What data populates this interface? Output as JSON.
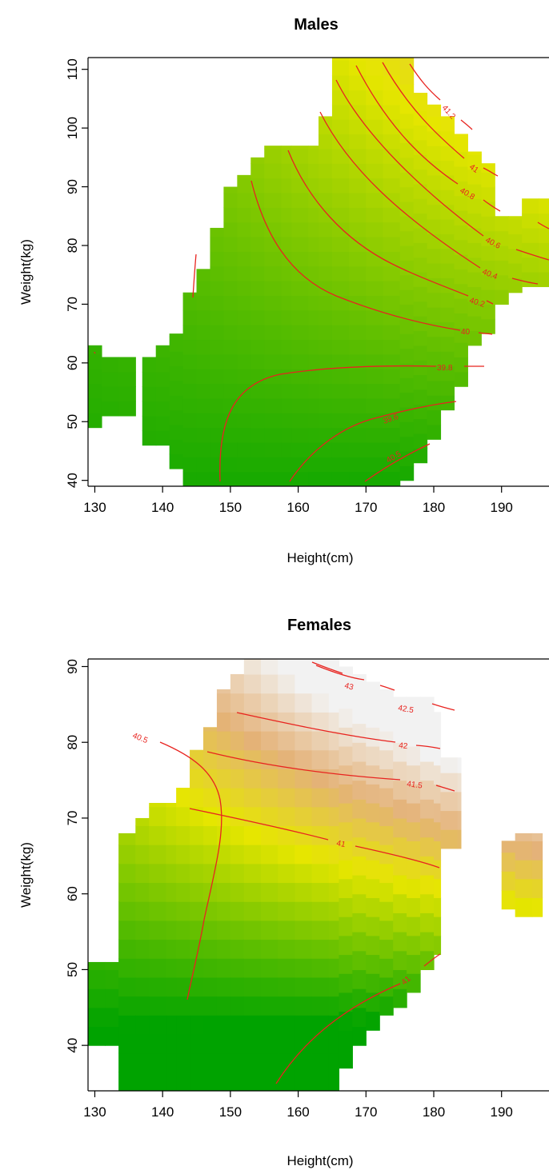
{
  "chart_data": [
    {
      "type": "heatmap",
      "title": "Males",
      "xlabel": "Height(cm)",
      "ylabel": "Weight(kg)",
      "xlim": [
        129,
        197
      ],
      "ylim": [
        39,
        112
      ],
      "x_ticks": [
        "130",
        "140",
        "150",
        "160",
        "170",
        "180",
        "190"
      ],
      "y_ticks": [
        "40",
        "50",
        "60",
        "70",
        "80",
        "90",
        "100",
        "110"
      ],
      "color_scale": {
        "low": "#00a300",
        "mid": "#e6e600",
        "high": "#f2f2f2",
        "vmin": 39.2,
        "vmax": 41.4
      },
      "cell_size": [
        2.5,
        2.5
      ],
      "coverage": [
        {
          "x": [
            129,
            131
          ],
          "y": [
            49,
            63
          ]
        },
        {
          "x": [
            131,
            136
          ],
          "y": [
            51,
            61
          ]
        },
        {
          "x": [
            137,
            139
          ],
          "y": [
            46,
            61
          ]
        },
        {
          "x": [
            139,
            141
          ],
          "y": [
            46,
            63
          ]
        },
        {
          "x": [
            141,
            143
          ],
          "y": [
            42,
            65
          ]
        },
        {
          "x": [
            143,
            145
          ],
          "y": [
            39,
            72
          ]
        },
        {
          "x": [
            145,
            147
          ],
          "y": [
            39,
            76
          ]
        },
        {
          "x": [
            147,
            149
          ],
          "y": [
            39,
            83
          ]
        },
        {
          "x": [
            149,
            151
          ],
          "y": [
            39,
            90
          ]
        },
        {
          "x": [
            151,
            153
          ],
          "y": [
            39,
            92
          ]
        },
        {
          "x": [
            153,
            155
          ],
          "y": [
            39,
            95
          ]
        },
        {
          "x": [
            155,
            159
          ],
          "y": [
            39,
            97
          ]
        },
        {
          "x": [
            159,
            163
          ],
          "y": [
            39,
            97
          ]
        },
        {
          "x": [
            163,
            165
          ],
          "y": [
            39,
            102
          ]
        },
        {
          "x": [
            165,
            175
          ],
          "y": [
            39,
            112
          ]
        },
        {
          "x": [
            175,
            177
          ],
          "y": [
            40,
            112
          ]
        },
        {
          "x": [
            177,
            179
          ],
          "y": [
            43,
            106
          ]
        },
        {
          "x": [
            179,
            181
          ],
          "y": [
            47,
            104
          ]
        },
        {
          "x": [
            181,
            183
          ],
          "y": [
            52,
            102
          ]
        },
        {
          "x": [
            183,
            185
          ],
          "y": [
            56,
            99
          ]
        },
        {
          "x": [
            185,
            187
          ],
          "y": [
            63,
            96
          ]
        },
        {
          "x": [
            187,
            189
          ],
          "y": [
            65,
            94
          ]
        },
        {
          "x": [
            189,
            191
          ],
          "y": [
            70,
            85
          ]
        },
        {
          "x": [
            191,
            193
          ],
          "y": [
            72,
            85
          ]
        },
        {
          "x": [
            193,
            197
          ],
          "y": [
            73,
            88
          ]
        }
      ],
      "field": {
        "type": "bilinear",
        "terms": {
          "c": 39.55,
          "x": 0.004,
          "y": 0.012,
          "xy": 0.00022,
          "x0": 160,
          "y0": 60
        }
      },
      "contour_levels": [
        "39.4",
        "39.6",
        "39.8",
        "40",
        "40.2",
        "40.4",
        "40.6",
        "40.8",
        "41",
        "41.2"
      ]
    },
    {
      "type": "heatmap",
      "title": "Females",
      "xlabel": "Height(cm)",
      "ylabel": "Weight(kg)",
      "xlim": [
        129,
        197
      ],
      "ylim": [
        34,
        91
      ],
      "x_ticks": [
        "130",
        "140",
        "150",
        "160",
        "170",
        "180",
        "190"
      ],
      "y_ticks": [
        "40",
        "50",
        "60",
        "70",
        "80",
        "90"
      ],
      "color_scale": {
        "low": "#00a300",
        "mid": "#e6e600",
        "high": "#f2f2f2",
        "vmin": 40.3,
        "vmax": 43.2
      },
      "cell_size": [
        2.5,
        2.5
      ],
      "coverage": [
        {
          "x": [
            129,
            133.5
          ],
          "y": [
            40,
            51
          ]
        },
        {
          "x": [
            133.5,
            136
          ],
          "y": [
            34,
            68
          ]
        },
        {
          "x": [
            136,
            138
          ],
          "y": [
            34,
            70
          ]
        },
        {
          "x": [
            138,
            142
          ],
          "y": [
            34,
            72
          ]
        },
        {
          "x": [
            142,
            144
          ],
          "y": [
            34,
            74
          ]
        },
        {
          "x": [
            144,
            146
          ],
          "y": [
            34,
            79
          ]
        },
        {
          "x": [
            146,
            148
          ],
          "y": [
            34,
            82
          ]
        },
        {
          "x": [
            148,
            150
          ],
          "y": [
            34,
            87
          ]
        },
        {
          "x": [
            150,
            152
          ],
          "y": [
            34,
            89
          ]
        },
        {
          "x": [
            152,
            166
          ],
          "y": [
            34,
            91
          ]
        },
        {
          "x": [
            166,
            168
          ],
          "y": [
            37,
            90
          ]
        },
        {
          "x": [
            168,
            170
          ],
          "y": [
            40,
            89
          ]
        },
        {
          "x": [
            170,
            172
          ],
          "y": [
            42,
            88
          ]
        },
        {
          "x": [
            172,
            174
          ],
          "y": [
            44,
            87
          ]
        },
        {
          "x": [
            174,
            176
          ],
          "y": [
            45,
            86
          ]
        },
        {
          "x": [
            176,
            178
          ],
          "y": [
            47,
            86
          ]
        },
        {
          "x": [
            178,
            180
          ],
          "y": [
            50,
            86
          ]
        },
        {
          "x": [
            180,
            181
          ],
          "y": [
            52,
            84
          ]
        },
        {
          "x": [
            181,
            184
          ],
          "y": [
            66,
            78
          ]
        },
        {
          "x": [
            190,
            192
          ],
          "y": [
            58,
            67
          ]
        },
        {
          "x": [
            192,
            196
          ],
          "y": [
            57,
            68
          ]
        }
      ],
      "field": {
        "type": "bilinear",
        "terms": {
          "c": 40.7,
          "x": 0.006,
          "y": 0.055,
          "xy": 0.0009,
          "x0": 150,
          "y0": 50
        }
      },
      "contour_levels": [
        "40.5",
        "41",
        "41",
        "41.5",
        "42",
        "42.5",
        "43"
      ]
    }
  ]
}
